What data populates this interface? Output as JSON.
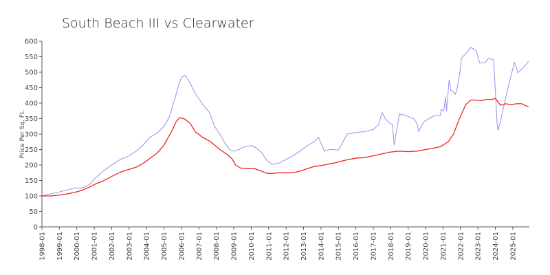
{
  "chart_data": {
    "type": "line",
    "title": "South Beach III vs Clearwater",
    "ylabel": "Price Per Sq. Ft.",
    "xlabel": "",
    "ylim": [
      0,
      600
    ],
    "y_ticks": [
      0,
      50,
      100,
      150,
      200,
      250,
      300,
      350,
      400,
      450,
      500,
      550,
      600
    ],
    "x_range": [
      1998.0,
      2025.95
    ],
    "x_ticks": [
      "1998-01",
      "1999-01",
      "2000-01",
      "2001-01",
      "2002-01",
      "2003-01",
      "2004-01",
      "2005-01",
      "2006-01",
      "2007-01",
      "2008-01",
      "2009-01",
      "2010-01",
      "2011-01",
      "2012-01",
      "2013-01",
      "2014-01",
      "2015-01",
      "2016-01",
      "2017-01",
      "2018-01",
      "2019-01",
      "2020-01",
      "2021-01",
      "2022-01",
      "2023-01",
      "2024-01",
      "2025-01"
    ],
    "grid": false,
    "legend": "none",
    "series": [
      {
        "color": "#9999ee",
        "x": [
          1998.0,
          1998.5,
          1999.0,
          1999.5,
          1999.9,
          2000.2,
          2000.5,
          2000.8,
          2001.0,
          2001.5,
          2002.0,
          2002.5,
          2003.0,
          2003.4,
          2003.8,
          2004.2,
          2004.6,
          2005.0,
          2005.3,
          2005.6,
          2005.85,
          2006.0,
          2006.2,
          2006.5,
          2006.8,
          2007.2,
          2007.6,
          2007.9,
          2008.2,
          2008.5,
          2008.8,
          2009.0,
          2009.3,
          2009.6,
          2010.0,
          2010.3,
          2010.6,
          2010.9,
          2011.2,
          2011.6,
          2012.0,
          2012.4,
          2012.8,
          2013.2,
          2013.6,
          2013.75,
          2013.85,
          2014.2,
          2014.5,
          2014.7,
          2015.0,
          2015.5,
          2016.0,
          2016.5,
          2017.0,
          2017.2,
          2017.3,
          2017.5,
          2017.7,
          2017.95,
          2018.1,
          2018.2,
          2018.5,
          2018.9,
          2019.2,
          2019.35,
          2019.5,
          2019.6,
          2019.9,
          2020.5,
          2020.8,
          2020.85,
          2020.9,
          2021.0,
          2021.05,
          2021.15,
          2021.2,
          2021.35,
          2021.45,
          2021.55,
          2021.7,
          2021.8,
          2021.95,
          2022.05,
          2022.3,
          2022.6,
          2022.9,
          2023.1,
          2023.4,
          2023.6,
          2023.9,
          2024.1,
          2024.15,
          2024.25,
          2024.6,
          2024.9,
          2025.1,
          2025.3,
          2025.6,
          2025.9
        ],
        "values": [
          100,
          107,
          113,
          120,
          126,
          125,
          130,
          140,
          155,
          180,
          200,
          218,
          230,
          245,
          265,
          290,
          303,
          325,
          355,
          410,
          460,
          483,
          490,
          465,
          430,
          397,
          370,
          325,
          300,
          270,
          247,
          245,
          250,
          258,
          263,
          255,
          240,
          215,
          202,
          206,
          218,
          230,
          245,
          262,
          275,
          283,
          290,
          245,
          250,
          250,
          248,
          300,
          305,
          308,
          315,
          325,
          330,
          370,
          348,
          335,
          330,
          265,
          365,
          360,
          352,
          348,
          335,
          308,
          340,
          360,
          360,
          360,
          380,
          375,
          380,
          420,
          375,
          475,
          440,
          440,
          428,
          445,
          492,
          545,
          560,
          580,
          570,
          530,
          530,
          545,
          540,
          335,
          312,
          330,
          420,
          490,
          532,
          498,
          515,
          535
        ]
      },
      {
        "color": "#ee2222",
        "x": [
          1998.0,
          1998.5,
          1999.0,
          1999.5,
          1999.9,
          2000.3,
          2000.7,
          2001.0,
          2001.5,
          2002.0,
          2002.5,
          2003.0,
          2003.4,
          2003.8,
          2004.2,
          2004.6,
          2005.0,
          2005.4,
          2005.7,
          2005.9,
          2006.0,
          2006.2,
          2006.5,
          2006.8,
          2007.2,
          2007.6,
          2007.9,
          2008.2,
          2008.6,
          2008.9,
          2009.1,
          2009.4,
          2009.8,
          2010.2,
          2010.6,
          2010.9,
          2011.2,
          2011.6,
          2012.0,
          2012.4,
          2012.8,
          2013.2,
          2013.6,
          2014.0,
          2014.4,
          2014.8,
          2015.2,
          2015.6,
          2016.0,
          2016.5,
          2017.0,
          2017.5,
          2018.0,
          2018.5,
          2019.0,
          2019.5,
          2020.0,
          2020.5,
          2020.9,
          2021.0,
          2021.3,
          2021.6,
          2021.9,
          2022.1,
          2022.3,
          2022.6,
          2022.9,
          2023.2,
          2023.5,
          2023.8,
          2024.0,
          2024.3,
          2024.6,
          2024.9,
          2025.2,
          2025.5,
          2025.9
        ],
        "values": [
          100,
          100,
          103,
          107,
          112,
          118,
          128,
          137,
          148,
          163,
          177,
          186,
          193,
          205,
          222,
          238,
          265,
          305,
          340,
          353,
          352,
          348,
          335,
          307,
          290,
          278,
          265,
          250,
          235,
          220,
          200,
          190,
          188,
          188,
          180,
          173,
          173,
          175,
          175,
          175,
          180,
          188,
          195,
          198,
          203,
          207,
          213,
          218,
          222,
          224,
          230,
          236,
          242,
          245,
          243,
          245,
          250,
          255,
          260,
          265,
          275,
          300,
          345,
          370,
          395,
          410,
          410,
          408,
          412,
          412,
          415,
          393,
          398,
          395,
          398,
          398,
          388
        ]
      }
    ]
  }
}
